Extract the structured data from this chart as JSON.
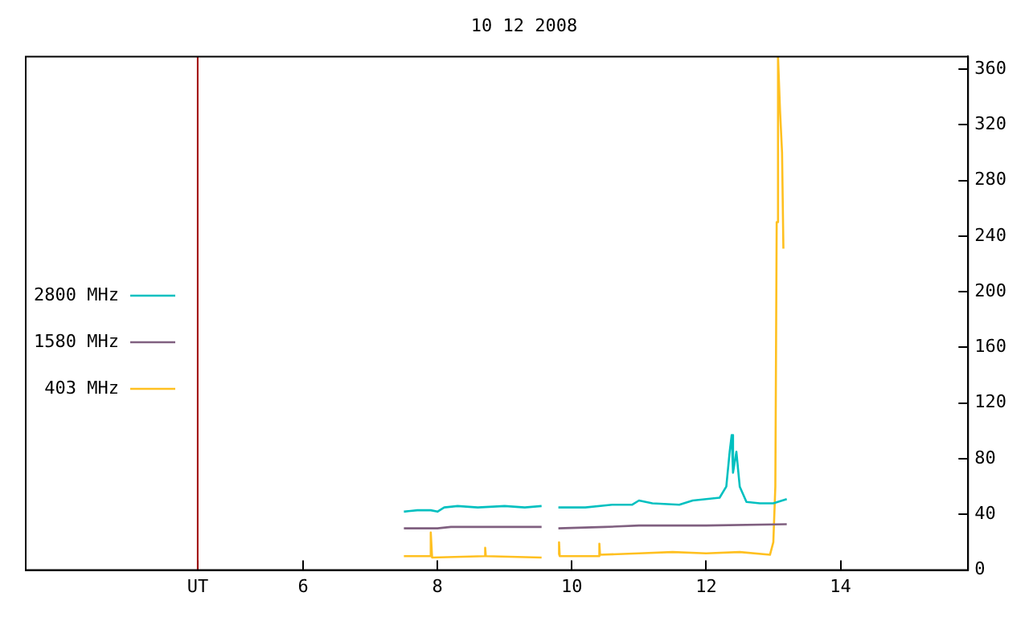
{
  "chart_data": {
    "type": "line",
    "title": "10 12 2008",
    "xlim": [
      1.87,
      15.9
    ],
    "ylim": [
      0,
      369
    ],
    "xticks": [
      {
        "value": 4.43,
        "label": "UT"
      },
      6,
      8,
      10,
      12,
      14
    ],
    "yticks": [
      0,
      40,
      80,
      120,
      160,
      200,
      240,
      280,
      320,
      360
    ],
    "grid": false,
    "legend": "left",
    "marker": "none",
    "line_style": "solid",
    "ref_lines": [
      {
        "axis": "x",
        "value": 4.43,
        "color": "#a00000"
      }
    ],
    "series": [
      {
        "name": "2800 MHz",
        "color": "#00c0c0",
        "x": [
          7.5,
          7.7,
          7.9,
          8.0,
          8.1,
          8.3,
          8.6,
          9.0,
          9.3,
          9.55,
          9.56,
          9.8,
          10.2,
          10.6,
          10.9,
          11.0,
          11.2,
          11.6,
          11.8,
          12.0,
          12.2,
          12.3,
          12.35,
          12.38,
          12.4,
          12.45,
          12.5,
          12.6,
          12.8,
          13.0,
          13.2
        ],
        "values": [
          42,
          43,
          43,
          42,
          45,
          46,
          45,
          46,
          45,
          46,
          null,
          45,
          45,
          47,
          47,
          50,
          48,
          47,
          50,
          51,
          52,
          60,
          85,
          97,
          70,
          85,
          60,
          49,
          48,
          48,
          51
        ]
      },
      {
        "name": "1580 MHz",
        "color": "#806080",
        "x": [
          7.5,
          8.0,
          8.2,
          9.55,
          9.56,
          9.8,
          10.5,
          11.0,
          12.0,
          13.2
        ],
        "values": [
          30,
          30,
          31,
          31,
          null,
          30,
          31,
          32,
          32,
          33
        ]
      },
      {
        "name": "403 MHz",
        "color": "#ffc020",
        "x": [
          7.5,
          7.88,
          7.9,
          7.92,
          8.7,
          8.71,
          8.72,
          9.55,
          9.56,
          9.8,
          9.81,
          9.82,
          10.4,
          10.41,
          10.42,
          11.0,
          11.5,
          12.0,
          12.5,
          12.95,
          13.0,
          13.03,
          13.05,
          13.07,
          13.1,
          13.13,
          13.15
        ],
        "values": [
          10,
          10,
          27,
          9,
          10,
          16,
          10,
          9,
          null,
          11,
          20,
          10,
          10,
          19,
          11,
          12,
          13,
          12,
          13,
          11,
          20,
          60,
          250,
          369,
          330,
          300,
          231
        ]
      }
    ]
  }
}
